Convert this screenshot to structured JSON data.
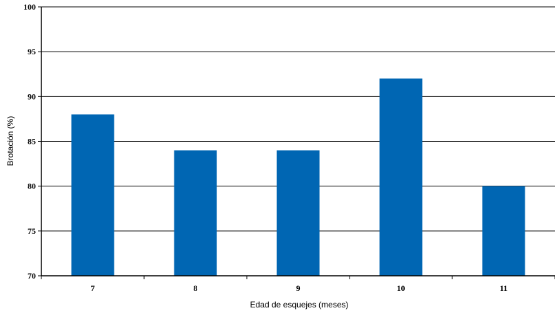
{
  "chart_data": {
    "type": "bar",
    "title": "",
    "xlabel": "Edad de esquejes (meses)",
    "ylabel": "Brotación (%)",
    "categories": [
      "7",
      "8",
      "9",
      "10",
      "11"
    ],
    "values": [
      88,
      84,
      84,
      92,
      80
    ],
    "ylim": [
      70,
      100
    ],
    "yticks": [
      "70",
      "75",
      "80",
      "85",
      "90",
      "95",
      "100"
    ],
    "grid": true,
    "legend": "none",
    "colors": {
      "bar": "#0066b3",
      "grid": "#000000",
      "axis": "#000000"
    }
  }
}
